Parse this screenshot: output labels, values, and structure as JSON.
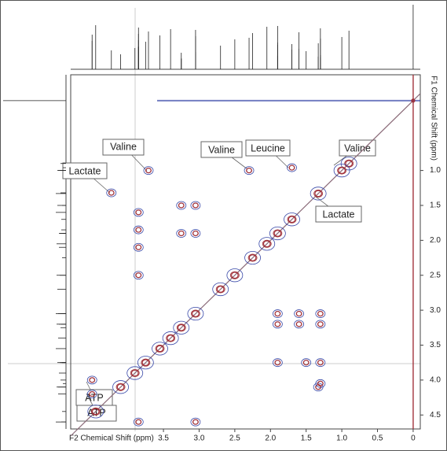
{
  "chart_data": {
    "type": "contour",
    "x_label": "F2 Chemical Shift (ppm)",
    "y_label": "F1 Chemical Shift (ppm)",
    "xlim": [
      4.8,
      -0.1
    ],
    "ylim": [
      -0.37,
      4.7
    ],
    "xticks": [
      {
        "value": 3.5,
        "label": "3.5"
      },
      {
        "value": 3,
        "label": "3.0"
      },
      {
        "value": 2.5,
        "label": "2.5"
      },
      {
        "value": 2,
        "label": "2.0"
      },
      {
        "value": 1.5,
        "label": "1.5"
      },
      {
        "value": 1,
        "label": "1.0"
      },
      0.5,
      0
    ],
    "yticks": [
      {
        "value": 1,
        "label": "1.0"
      },
      1.5,
      {
        "value": 2,
        "label": "2.0"
      },
      2.5,
      {
        "value": 3,
        "label": "3.0"
      },
      3.5,
      {
        "value": 4,
        "label": "4.0"
      },
      4.5
    ],
    "color": "#a03038",
    "color2": "#3848a8",
    "peaks": {
      "x": [
        0,
        0.9,
        1.0,
        1.33,
        1.7,
        1.9,
        2.05,
        2.25,
        2.5,
        2.7,
        3.05,
        3.25,
        3.4,
        3.55,
        3.75,
        3.9,
        4.1,
        4.45,
        3.71,
        2.3,
        1.7,
        4.23,
        1.33,
        3.85,
        3.85,
        3.85,
        3.85,
        3.25,
        3.25,
        3.05,
        3.05,
        1.9,
        1.6,
        1.3,
        1.9,
        1.6,
        1.3,
        1.9,
        1.5,
        1.3,
        1.3,
        4.5,
        4.5,
        3.85,
        3.05
      ],
      "y": [
        0,
        0.9,
        1.0,
        1.33,
        1.7,
        1.9,
        2.05,
        2.25,
        2.5,
        2.7,
        3.05,
        3.25,
        3.4,
        3.55,
        3.75,
        3.9,
        4.1,
        4.45,
        1.0,
        1.0,
        0.96,
        1.32,
        4.1,
        1.6,
        1.85,
        2.1,
        2.5,
        1.5,
        1.9,
        1.5,
        1.9,
        3.05,
        3.05,
        3.05,
        3.2,
        3.2,
        3.2,
        3.75,
        3.75,
        3.75,
        4.05,
        4.0,
        4.2,
        4.6,
        4.6
      ]
    },
    "annotations": [
      "Valine",
      "Valine",
      "Leucine",
      "Valine",
      "Lactate",
      "Lactate",
      "ATP",
      "ATP"
    ]
  }
}
